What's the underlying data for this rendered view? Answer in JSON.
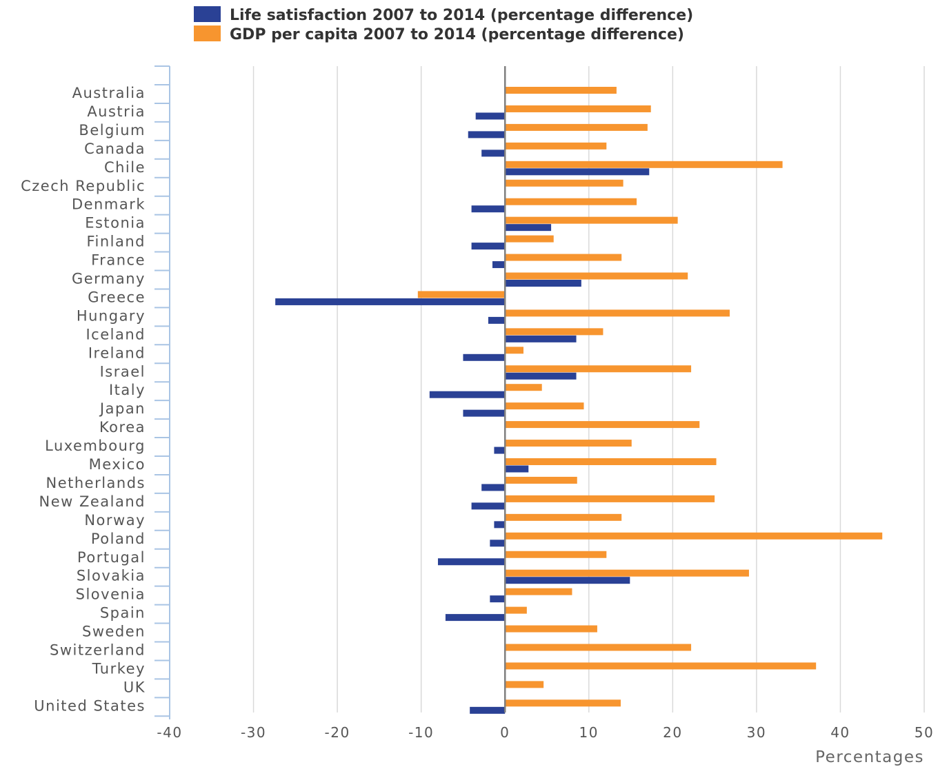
{
  "chart_data": {
    "type": "bar",
    "orientation": "horizontal",
    "categories": [
      "Australia",
      "Austria",
      "Belgium",
      "Canada",
      "Chile",
      "Czech Republic",
      "Denmark",
      "Estonia",
      "Finland",
      "France",
      "Germany",
      "Greece",
      "Hungary",
      "Iceland",
      "Ireland",
      "Israel",
      "Italy",
      "Japan",
      "Korea",
      "Luxembourg",
      "Mexico",
      "Netherlands",
      "New Zealand",
      "Norway",
      "Poland",
      "Portugal",
      "Slovakia",
      "Slovenia",
      "Spain",
      "Sweden",
      "Switzerland",
      "Turkey",
      "UK",
      "United States"
    ],
    "series": [
      {
        "name": "Life satisfaction 2007 to 2014 (percentage difference)",
        "color": "#2a4195",
        "values": [
          0.0,
          -3.5,
          -4.4,
          -2.8,
          17.2,
          0.0,
          -4.0,
          5.5,
          -4.0,
          -1.5,
          9.1,
          -27.4,
          -2.0,
          8.5,
          -5.0,
          8.5,
          -9.0,
          -5.0,
          0.0,
          -1.3,
          2.8,
          -2.8,
          -4.0,
          -1.3,
          -1.8,
          -8.0,
          14.9,
          -1.8,
          -7.1,
          0.0,
          0.0,
          0.0,
          0.0,
          -4.2
        ]
      },
      {
        "name": "GDP per capita 2007 to 2014 (percentage difference)",
        "color": "#f7952f",
        "values": [
          13.3,
          17.4,
          17.0,
          12.1,
          33.1,
          14.1,
          15.7,
          20.6,
          5.8,
          13.9,
          21.8,
          -10.4,
          26.8,
          11.7,
          2.2,
          22.2,
          4.4,
          9.4,
          23.2,
          15.1,
          25.2,
          8.6,
          25.0,
          13.9,
          45.0,
          12.1,
          29.1,
          8.0,
          2.6,
          11.0,
          22.2,
          37.1,
          4.6,
          13.8
        ]
      }
    ],
    "xlim": [
      -40,
      50
    ],
    "xticks": [
      -40,
      -30,
      -20,
      -10,
      0,
      10,
      20,
      30,
      40,
      50
    ],
    "xlabel": "Percentages",
    "ylabel": "",
    "grid": true,
    "legend_position": "top"
  }
}
